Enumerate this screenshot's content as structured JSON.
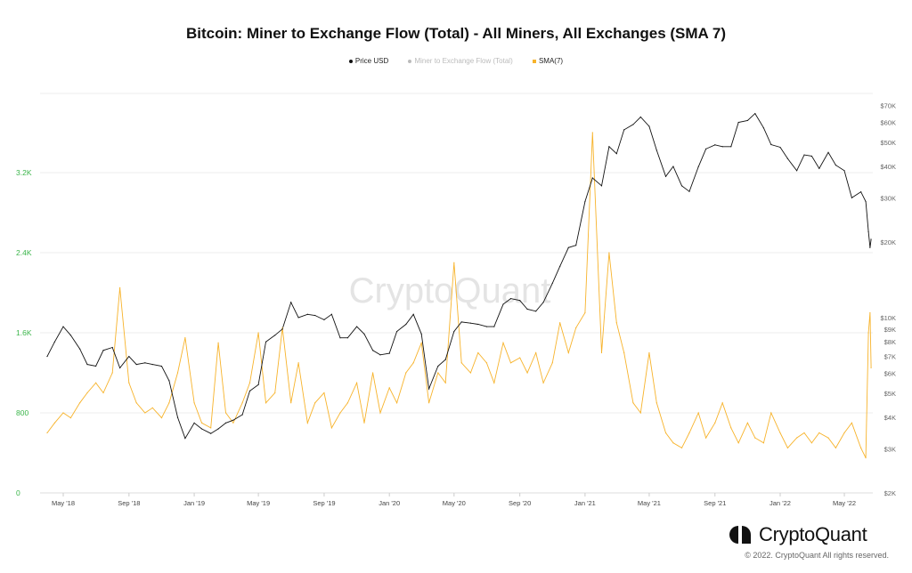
{
  "chart_data": {
    "type": "line",
    "title": "Bitcoin: Miner to Exchange Flow (Total) - All Miners, All Exchanges (SMA 7)",
    "legend": [
      {
        "label": "Price USD",
        "color": "#111111"
      },
      {
        "label": "Miner to Exchange Flow (Total)",
        "color": "#bbbbbb"
      },
      {
        "label": "SMA(7)",
        "color": "#f7b32b"
      }
    ],
    "legend_position": "top-center",
    "watermark": "CryptoQuant",
    "x_ticks": [
      "May '18",
      "Sep '18",
      "Jan '19",
      "May '19",
      "Sep '19",
      "Jan '20",
      "May '20",
      "Sep '20",
      "Jan '21",
      "May '21",
      "Sep '21",
      "Jan '22",
      "May '22"
    ],
    "x_tick_dates": [
      "2018-05-01",
      "2018-09-01",
      "2019-01-01",
      "2019-05-01",
      "2019-09-01",
      "2020-01-01",
      "2020-05-01",
      "2020-09-01",
      "2021-01-01",
      "2021-05-01",
      "2021-09-01",
      "2022-01-01",
      "2022-05-01"
    ],
    "y_left": {
      "label": "",
      "ticks": [
        "0",
        "800",
        "1.6K",
        "2.4K",
        "3.2K"
      ],
      "tick_values": [
        0,
        800,
        1600,
        2400,
        3200
      ],
      "range": [
        0,
        3850
      ],
      "color": "#3bb54a"
    },
    "y_right": {
      "label": "",
      "scale": "log",
      "ticks": [
        "$2K",
        "$3K",
        "$4K",
        "$5K",
        "$6K",
        "$7K",
        "$8K",
        "$9K",
        "$10K",
        "$20K",
        "$30K",
        "$40K",
        "$50K",
        "$60K",
        "$70K"
      ],
      "tick_values": [
        2000,
        3000,
        4000,
        5000,
        6000,
        7000,
        8000,
        9000,
        10000,
        20000,
        30000,
        40000,
        50000,
        60000,
        70000
      ],
      "range": [
        2000,
        80000
      ]
    },
    "grid": true,
    "dates": [
      "2018-04-01",
      "2018-04-15",
      "2018-05-01",
      "2018-05-15",
      "2018-06-01",
      "2018-06-15",
      "2018-07-01",
      "2018-07-15",
      "2018-08-01",
      "2018-08-15",
      "2018-09-01",
      "2018-09-15",
      "2018-10-01",
      "2018-10-15",
      "2018-11-01",
      "2018-11-15",
      "2018-12-01",
      "2018-12-15",
      "2019-01-01",
      "2019-01-15",
      "2019-02-01",
      "2019-02-15",
      "2019-03-01",
      "2019-03-15",
      "2019-04-01",
      "2019-04-15",
      "2019-05-01",
      "2019-05-15",
      "2019-06-01",
      "2019-06-15",
      "2019-07-01",
      "2019-07-15",
      "2019-08-01",
      "2019-08-15",
      "2019-09-01",
      "2019-09-15",
      "2019-10-01",
      "2019-10-15",
      "2019-11-01",
      "2019-11-15",
      "2019-12-01",
      "2019-12-15",
      "2020-01-01",
      "2020-01-15",
      "2020-02-01",
      "2020-02-15",
      "2020-03-01",
      "2020-03-15",
      "2020-04-01",
      "2020-04-15",
      "2020-05-01",
      "2020-05-15",
      "2020-06-01",
      "2020-06-15",
      "2020-07-01",
      "2020-07-15",
      "2020-08-01",
      "2020-08-15",
      "2020-09-01",
      "2020-09-15",
      "2020-10-01",
      "2020-10-15",
      "2020-11-01",
      "2020-11-15",
      "2020-12-01",
      "2020-12-15",
      "2021-01-01",
      "2021-01-15",
      "2021-02-01",
      "2021-02-15",
      "2021-03-01",
      "2021-03-15",
      "2021-04-01",
      "2021-04-15",
      "2021-05-01",
      "2021-05-15",
      "2021-06-01",
      "2021-06-15",
      "2021-07-01",
      "2021-07-15",
      "2021-08-01",
      "2021-08-15",
      "2021-09-01",
      "2021-09-15",
      "2021-10-01",
      "2021-10-15",
      "2021-11-01",
      "2021-11-15",
      "2021-12-01",
      "2021-12-15",
      "2022-01-01",
      "2022-01-15",
      "2022-02-01",
      "2022-02-15",
      "2022-03-01",
      "2022-03-15",
      "2022-04-01",
      "2022-04-15",
      "2022-05-01",
      "2022-05-15",
      "2022-06-01",
      "2022-06-10",
      "2022-06-15",
      "2022-06-18",
      "2022-06-20"
    ],
    "series": [
      {
        "name": "Price USD",
        "axis": "right",
        "values": [
          7000,
          8000,
          9200,
          8500,
          7500,
          6500,
          6400,
          7400,
          7600,
          6300,
          7000,
          6500,
          6600,
          6500,
          6400,
          5600,
          4000,
          3300,
          3800,
          3600,
          3450,
          3600,
          3800,
          3900,
          4100,
          5100,
          5400,
          8000,
          8500,
          9000,
          11500,
          10000,
          10300,
          10200,
          9800,
          10300,
          8300,
          8300,
          9200,
          8600,
          7400,
          7100,
          7200,
          8800,
          9400,
          10300,
          8600,
          5200,
          6400,
          6800,
          8800,
          9600,
          9500,
          9400,
          9200,
          9200,
          11300,
          11900,
          11700,
          10800,
          10600,
          11500,
          13700,
          16000,
          19000,
          19400,
          29000,
          36000,
          33500,
          48000,
          45000,
          56000,
          58800,
          63000,
          57800,
          46400,
          36500,
          40000,
          33500,
          31800,
          39900,
          47000,
          48800,
          48000,
          48000,
          60000,
          61000,
          65000,
          57000,
          48900,
          47700,
          43000,
          38500,
          44500,
          44000,
          39300,
          45500,
          40500,
          38500,
          30000,
          31700,
          29000,
          22000,
          19000,
          20500
        ]
      },
      {
        "name": "SMA(7)",
        "axis": "left",
        "values": [
          600,
          700,
          800,
          750,
          900,
          1000,
          1100,
          1000,
          1200,
          2050,
          1100,
          900,
          800,
          850,
          750,
          900,
          1200,
          1550,
          900,
          700,
          650,
          1500,
          800,
          700,
          900,
          1100,
          1600,
          900,
          1000,
          1650,
          900,
          1300,
          700,
          900,
          1000,
          650,
          800,
          900,
          1100,
          700,
          1200,
          800,
          1050,
          900,
          1200,
          1300,
          1500,
          900,
          1200,
          1100,
          2300,
          1300,
          1200,
          1400,
          1300,
          1100,
          1500,
          1300,
          1350,
          1200,
          1400,
          1100,
          1300,
          1700,
          1400,
          1650,
          1800,
          3600,
          1400,
          2400,
          1700,
          1400,
          900,
          800,
          1400,
          900,
          600,
          500,
          450,
          600,
          800,
          550,
          700,
          900,
          650,
          500,
          700,
          550,
          500,
          800,
          600,
          450,
          550,
          600,
          500,
          600,
          550,
          450,
          600,
          700,
          450,
          350,
          1600,
          1800,
          1250
        ]
      }
    ]
  },
  "footer": {
    "logo": "CryptoQuant",
    "copyright": "© 2022. CryptoQuant All rights reserved."
  }
}
